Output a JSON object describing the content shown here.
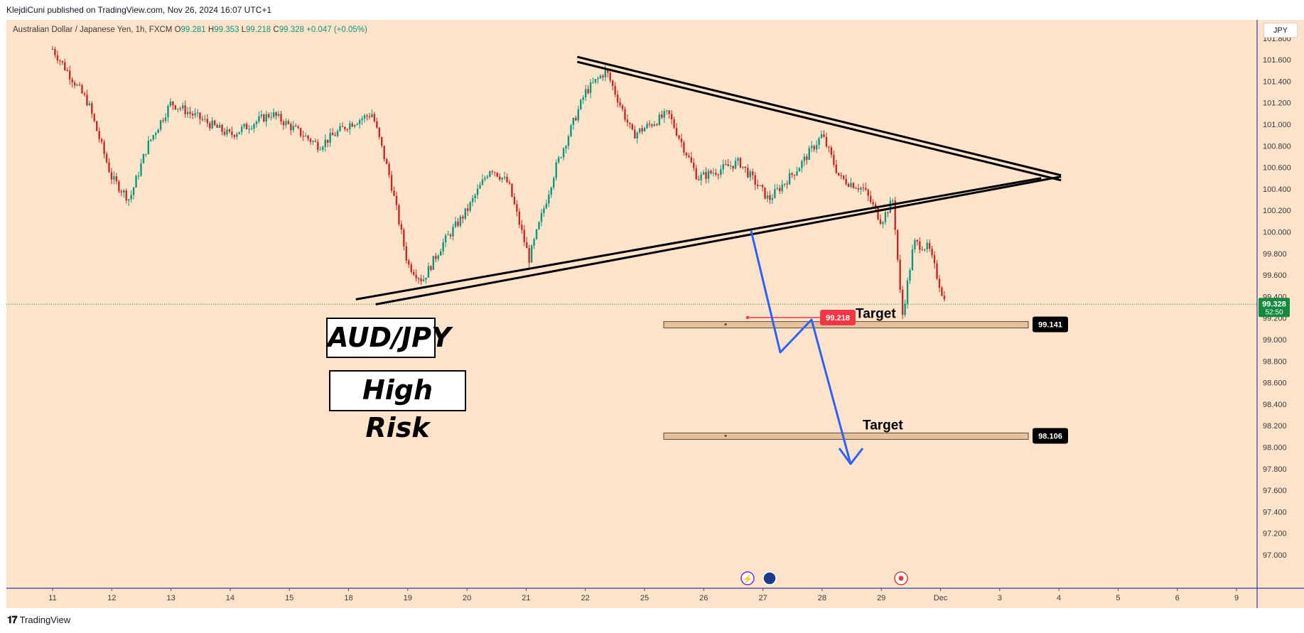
{
  "header": {
    "published_text": "KlejdiCuni published on TradingView.com, Nov 26, 2024 16:07 UTC+1"
  },
  "symbol_bar": {
    "name": "Australian Dollar / Japanese Yen, 1h, FXCM",
    "open_label": "O",
    "open": "99.281",
    "high_label": "H",
    "high": "99.353",
    "low_label": "L",
    "low": "99.218",
    "close_label": "C",
    "close": "99.328",
    "change": "+0.047 (+0.05%)"
  },
  "currency_badge": "JPY",
  "annotations": {
    "pair_label": "AUD/JPY",
    "risk_label": "High Risk",
    "target_1_label": "Target",
    "target_2_label": "Target"
  },
  "price_tags": {
    "current_price": "99.328",
    "countdown": "52:50",
    "low_price": "99.218",
    "target_1": "99.141",
    "target_2": "98.106"
  },
  "footer": {
    "brand": "TradingView"
  },
  "colors": {
    "background": "#fde3c9",
    "up_candle": "#089981",
    "down_candle": "#c62828",
    "projection": "#2962ff",
    "wedge": "#000000",
    "target_zone": "#e6c29c",
    "current_price_tag": "#138a3d",
    "low_price_tag": "#f23645"
  },
  "chart_data": {
    "type": "candlestick",
    "title": "Australian Dollar / Japanese Yen, 1h, FXCM",
    "ylim": [
      96.8,
      101.9
    ],
    "y_ticks": [
      97.0,
      97.2,
      97.4,
      97.6,
      97.8,
      98.0,
      98.2,
      98.4,
      98.6,
      98.8,
      99.0,
      99.2,
      99.4,
      99.6,
      99.8,
      100.0,
      100.2,
      100.4,
      100.6,
      100.8,
      101.0,
      101.2,
      101.4,
      101.6,
      101.8
    ],
    "x_tick_labels": [
      "11",
      "12",
      "13",
      "14",
      "15",
      "18",
      "19",
      "20",
      "21",
      "22",
      "25",
      "26",
      "27",
      "28",
      "29",
      "Dec",
      "3",
      "4",
      "5",
      "6",
      "9"
    ],
    "price_path_key_points": [
      {
        "t": 0.0,
        "p": 101.7
      },
      {
        "t": 0.6,
        "p": 101.2
      },
      {
        "t": 1.0,
        "p": 100.5
      },
      {
        "t": 1.3,
        "p": 100.3
      },
      {
        "t": 1.6,
        "p": 100.8
      },
      {
        "t": 2.0,
        "p": 101.2
      },
      {
        "t": 3.0,
        "p": 100.9
      },
      {
        "t": 3.7,
        "p": 101.1
      },
      {
        "t": 4.5,
        "p": 100.8
      },
      {
        "t": 5.0,
        "p": 101.0
      },
      {
        "t": 5.4,
        "p": 101.1
      },
      {
        "t": 5.7,
        "p": 100.5
      },
      {
        "t": 6.0,
        "p": 99.7
      },
      {
        "t": 6.25,
        "p": 99.55
      },
      {
        "t": 6.6,
        "p": 99.9
      },
      {
        "t": 7.0,
        "p": 100.2
      },
      {
        "t": 7.4,
        "p": 100.6
      },
      {
        "t": 7.7,
        "p": 100.45
      },
      {
        "t": 8.05,
        "p": 99.75
      },
      {
        "t": 8.5,
        "p": 100.6
      },
      {
        "t": 9.0,
        "p": 101.3
      },
      {
        "t": 9.35,
        "p": 101.5
      },
      {
        "t": 9.8,
        "p": 100.9
      },
      {
        "t": 10.4,
        "p": 101.1
      },
      {
        "t": 10.9,
        "p": 100.5
      },
      {
        "t": 11.6,
        "p": 100.65
      },
      {
        "t": 12.1,
        "p": 100.3
      },
      {
        "t": 12.6,
        "p": 100.6
      },
      {
        "t": 13.0,
        "p": 100.9
      },
      {
        "t": 13.3,
        "p": 100.5
      },
      {
        "t": 13.7,
        "p": 100.4
      },
      {
        "t": 14.0,
        "p": 100.1
      },
      {
        "t": 14.2,
        "p": 100.3
      },
      {
        "t": 14.35,
        "p": 99.2
      },
      {
        "t": 14.55,
        "p": 99.9
      },
      {
        "t": 14.8,
        "p": 99.85
      },
      {
        "t": 15.1,
        "p": 99.3
      }
    ],
    "wedge_upper": [
      {
        "t": 9.2,
        "p": 101.6
      },
      {
        "t": 16.7,
        "p": 100.5
      }
    ],
    "wedge_lower": [
      {
        "t": 6.3,
        "p": 99.4
      },
      {
        "t": 16.7,
        "p": 100.5
      }
    ],
    "projection_path": [
      {
        "t": 15.1,
        "p": 100.25
      },
      {
        "t": 15.9,
        "p": 99.15
      },
      {
        "t": 16.5,
        "p": 99.45
      },
      {
        "t": 17.2,
        "p": 98.1
      }
    ],
    "target_zones": [
      {
        "label": "Target",
        "price": 99.141,
        "t_start": 13.6,
        "t_end": 21.0
      },
      {
        "label": "Target",
        "price": 98.106,
        "t_start": 13.6,
        "t_end": 21.0
      }
    ],
    "current_price": 99.328
  }
}
